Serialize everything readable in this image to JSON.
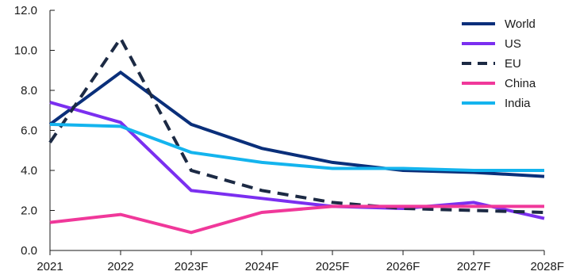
{
  "chart_data": {
    "type": "line",
    "title": "",
    "xlabel": "",
    "ylabel": "",
    "x": [
      "2021",
      "2022",
      "2023F",
      "2024F",
      "2025F",
      "2026F",
      "2027F",
      "2028F"
    ],
    "ylim": [
      0,
      12
    ],
    "yticks": [
      "0.0",
      "2.0",
      "4.0",
      "6.0",
      "8.0",
      "10.0",
      "12.0"
    ],
    "grid": false,
    "legend_position": "top-right",
    "series": [
      {
        "name": "World",
        "color": "#0a2f7a",
        "dash": false,
        "values": [
          6.3,
          8.9,
          6.3,
          5.1,
          4.4,
          4.0,
          3.9,
          3.7
        ]
      },
      {
        "name": "US",
        "color": "#7b2ff0",
        "dash": false,
        "values": [
          7.4,
          6.4,
          3.0,
          2.6,
          2.2,
          2.1,
          2.4,
          1.6
        ]
      },
      {
        "name": "EU",
        "color": "#1c2a44",
        "dash": true,
        "values": [
          5.4,
          10.6,
          4.0,
          3.0,
          2.4,
          2.1,
          2.0,
          1.9
        ]
      },
      {
        "name": "China",
        "color": "#f0389a",
        "dash": false,
        "values": [
          1.4,
          1.8,
          0.9,
          1.9,
          2.2,
          2.2,
          2.2,
          2.2
        ]
      },
      {
        "name": "India",
        "color": "#14b4ee",
        "dash": false,
        "values": [
          6.3,
          6.2,
          4.9,
          4.4,
          4.1,
          4.1,
          4.0,
          4.0
        ]
      }
    ]
  }
}
